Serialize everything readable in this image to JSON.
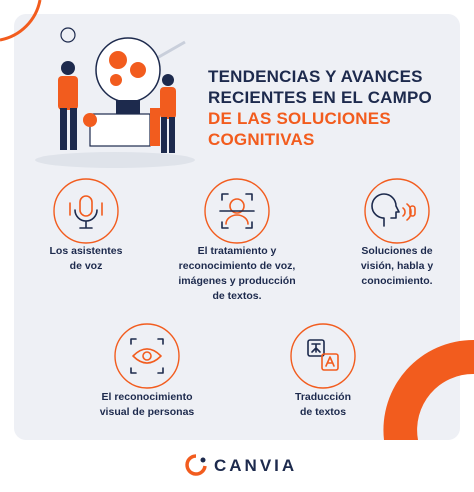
{
  "header": {
    "title_lines": [
      "TENDENCIAS Y AVANCES",
      "RECIENTES EN EL CAMPO",
      "DE LAS SOLUCIONES",
      "COGNITIVAS"
    ]
  },
  "items": [
    {
      "label_lines": [
        "Los asistentes",
        "de voz"
      ]
    },
    {
      "label_lines": [
        "El tratamiento y",
        "reconocimiento de voz,",
        "imágenes y producción",
        "de textos."
      ]
    },
    {
      "label_lines": [
        "Soluciones de",
        "visión, habla y",
        "conocimiento."
      ]
    },
    {
      "label_lines": [
        "El reconocimiento",
        "visual de personas"
      ]
    },
    {
      "label_lines": [
        "Traducción",
        "de textos"
      ]
    }
  ],
  "footer": {
    "brand": "CANVIA"
  }
}
